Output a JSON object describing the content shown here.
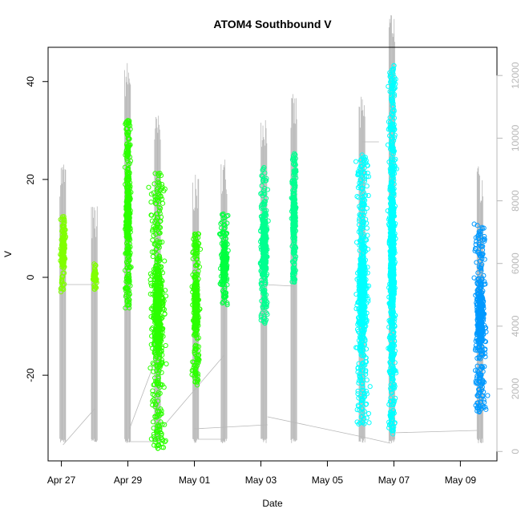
{
  "chart_data": {
    "type": "scatter",
    "title": "ATOM4 Southbound V",
    "xlabel": "Date",
    "ylabel": "V",
    "x_ticks": [
      "Apr 27",
      "Apr 29",
      "May 01",
      "May 03",
      "May 05",
      "May 07",
      "May 09"
    ],
    "x_tick_days": [
      0,
      2,
      4,
      6,
      8,
      10,
      12
    ],
    "xlim": [
      -0.4,
      13.1
    ],
    "ylim": [
      -37.5,
      47
    ],
    "y_ticks": [
      -20,
      0,
      20,
      40
    ],
    "y2_ticks": [
      0,
      2000,
      4000,
      6000,
      8000,
      10000,
      12000
    ],
    "y2lim": [
      -300,
      12900
    ],
    "grid": false,
    "legend": "none",
    "colors": {
      "yellowgreen": "#80ff00",
      "green": "#2cff00",
      "greenish": "#00ff40",
      "teal": "#00ff90",
      "cyan": "#00ffff",
      "blue": "#0099ff",
      "secondary": "#b8b8b8"
    },
    "series": [
      {
        "day": 0.05,
        "y_min": -3,
        "y_max": 12.5,
        "color": "#80ff00",
        "width": 0.1
      },
      {
        "day": 1.0,
        "y_min": -2.5,
        "y_max": 3,
        "color": "#80ff00",
        "width": 0.1
      },
      {
        "day": 2.0,
        "y_min": -6.5,
        "y_max": 32.5,
        "color": "#2cff00",
        "width": 0.12
      },
      {
        "day": 2.9,
        "y_min": -35,
        "y_max": 21.5,
        "color": "#2cff00",
        "width": 0.3
      },
      {
        "day": 4.05,
        "y_min": -22,
        "y_max": 9,
        "color": "#2cff00",
        "width": 0.15
      },
      {
        "day": 4.9,
        "y_min": -6.5,
        "y_max": 13,
        "color": "#00ff40",
        "width": 0.15
      },
      {
        "day": 6.1,
        "y_min": -10,
        "y_max": 22.5,
        "color": "#00ff90",
        "width": 0.15
      },
      {
        "day": 7.0,
        "y_min": -1,
        "y_max": 25.5,
        "color": "#00ff90",
        "width": 0.1
      },
      {
        "day": 9.05,
        "y_min": -30,
        "y_max": 25,
        "color": "#00ffff",
        "width": 0.25
      },
      {
        "day": 9.95,
        "y_min": -32.5,
        "y_max": 43.5,
        "color": "#00ffff",
        "width": 0.15
      },
      {
        "day": 12.6,
        "y_min": -27.5,
        "y_max": 11,
        "color": "#0099ff",
        "width": 0.25
      }
    ]
  }
}
